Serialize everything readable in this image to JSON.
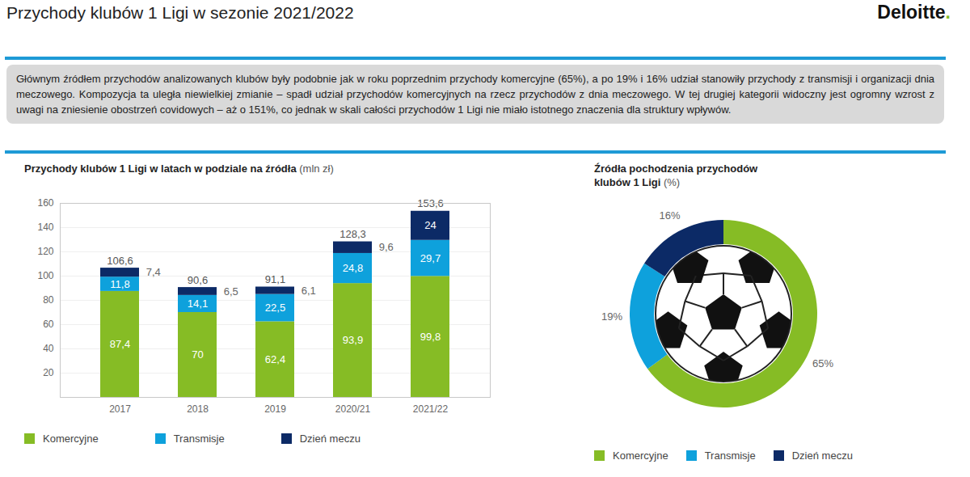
{
  "page": {
    "title": "Przychody klubów 1 Ligi w sezonie 2021/2022",
    "logo": "Deloitte.",
    "text": "Głównym źródłem przychodów analizowanych klubów były podobnie jak w roku poprzednim przychody komercyjne (65%), a po 19% i 16% udział stanowiły przychody z transmisji i organizacji dnia meczowego. Kompozycja ta uległa niewielkiej zmianie – spadł udział przychodów komercyjnych na rzecz przychodów z dnia meczowego. W tej drugiej kategorii widoczny jest ogromny wzrost z uwagi na zniesienie obostrzeń covidowych – aż o 151%, co jednak w skali całości przychodów 1 Ligi nie miało istotnego znaczenia dla struktury wpływów."
  },
  "chart_data": [
    {
      "type": "bar",
      "stacked": true,
      "title": "Przychody klubów 1 Ligi w latach w podziale na źródła",
      "subtitle": "(mln zł)",
      "categories": [
        "2017",
        "2018",
        "2019",
        "2020/21",
        "2021/22"
      ],
      "series": [
        {
          "name": "Komercyjne",
          "color": "#86bc25",
          "values": [
            87.4,
            70,
            62.4,
            93.9,
            99.8
          ],
          "value_labels": [
            "87,4",
            "70",
            "62,4",
            "93,9",
            "99,8"
          ]
        },
        {
          "name": "Transmisje",
          "color": "#0ea1dc",
          "values": [
            11.8,
            14.1,
            22.5,
            24.8,
            29.7
          ],
          "value_labels": [
            "11,8",
            "14,1",
            "22,5",
            "24,8",
            "29,7"
          ]
        },
        {
          "name": "Dzień meczu",
          "color": "#0c2a66",
          "values": [
            7.4,
            6.5,
            6.1,
            9.6,
            24
          ],
          "value_labels": [
            "7,4",
            "6,5",
            "6,1",
            "9,6",
            "24"
          ]
        }
      ],
      "totals": [
        106.6,
        90.6,
        91.1,
        128.3,
        153.6
      ],
      "total_labels": [
        "106,6",
        "90,6",
        "91,1",
        "128,3",
        "153,6"
      ],
      "ylim": [
        0,
        160
      ],
      "yticks": [
        20,
        40,
        60,
        80,
        100,
        120,
        140,
        160
      ],
      "grid": true,
      "data_labels": true,
      "legend": "bottom"
    },
    {
      "type": "pie",
      "title": "Źródła pochodzenia przychodów klubów 1 Ligi",
      "subtitle": "(%)",
      "categories": [
        "Komercyjne",
        "Transmisje",
        "Dzień meczu"
      ],
      "values": [
        65,
        19,
        16
      ],
      "value_labels": [
        "65%",
        "19%",
        "16%"
      ],
      "colors": [
        "#86bc25",
        "#0ea1dc",
        "#0c2a66"
      ],
      "data_labels": true,
      "legend": "bottom"
    }
  ]
}
